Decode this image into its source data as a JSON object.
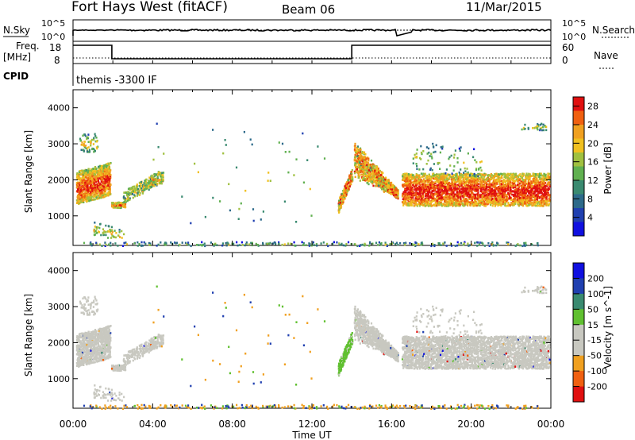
{
  "header": {
    "title": "Fort Hays West (fitACF)",
    "beam": "Beam 06",
    "date": "11/Mar/2015"
  },
  "status_panel": {
    "nsky_label": "N.Sky",
    "nsearch_label": "N.Search",
    "freq_label": "Freq.",
    "freq_unit": "[MHz]",
    "nave_label": "Nave",
    "cpid_label": "CPID",
    "cpid_value": "themis -3300 IF",
    "noise_ticks": [
      "10^5",
      "10^0"
    ],
    "noise_right_ticks": [
      "10^5",
      "10^0"
    ],
    "freq_ticks": [
      "18",
      "8"
    ],
    "nave_ticks": [
      "60",
      "0"
    ]
  },
  "colors": {
    "power_scale": [
      "#1010e0",
      "#2040b0",
      "#2d6a8a",
      "#3a8a70",
      "#60b050",
      "#a0c040",
      "#f0c020",
      "#f0a020",
      "#f06010",
      "#e01010"
    ],
    "velocity_scale": [
      "#e01010",
      "#f06010",
      "#f0a020",
      "#c8c8c0",
      "#c8c8c0",
      "#60c030",
      "#3a8a70",
      "#2040b0",
      "#1010e0"
    ],
    "ground_scatter": "#c8c8c0"
  },
  "chart_data": [
    {
      "type": "heatmap",
      "name": "power",
      "ylabel": "Slant Range [km]",
      "yticks": [
        "1000",
        "2000",
        "3000",
        "4000"
      ],
      "ylim": [
        180,
        4500
      ],
      "xlim": [
        "00:00",
        "24:00"
      ],
      "colorbar": {
        "label": "Power [dB]",
        "ticks": [
          "28",
          "24",
          "20",
          "16",
          "12",
          "8",
          "4"
        ],
        "range": [
          0,
          30
        ]
      }
    },
    {
      "type": "heatmap",
      "name": "velocity",
      "ylabel": "Slant Range [km]",
      "yticks": [
        "1000",
        "2000",
        "3000",
        "4000"
      ],
      "ylim": [
        180,
        4500
      ],
      "xlim": [
        "00:00",
        "24:00"
      ],
      "xlabel": "Time UT",
      "xticks": [
        "00:00",
        "04:00",
        "08:00",
        "12:00",
        "16:00",
        "20:00",
        "00:00"
      ],
      "colorbar": {
        "label": "Velocity [m s^-1]",
        "ticks": [
          "200",
          "100",
          "50",
          "15",
          "-15",
          "-50",
          "-100",
          "-200"
        ],
        "range": [
          -250,
          250
        ]
      }
    }
  ]
}
